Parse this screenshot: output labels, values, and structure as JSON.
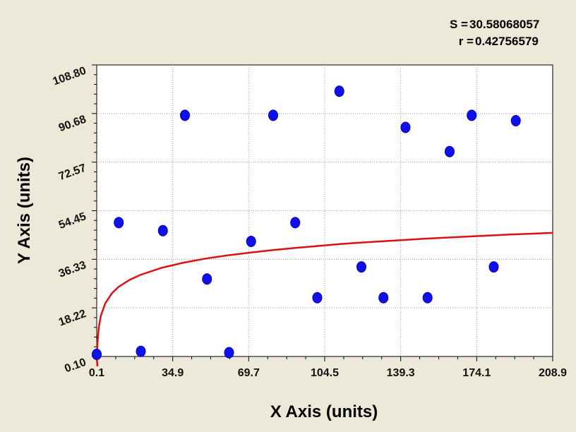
{
  "chart_data": {
    "type": "scatter",
    "title": "",
    "xlabel": "X Axis (units)",
    "ylabel": "Y Axis (units)",
    "xlim": [
      0.1,
      208.9
    ],
    "ylim": [
      0.1,
      108.8
    ],
    "x_ticks": [
      "0.1",
      "34.9",
      "69.7",
      "104.5",
      "139.3",
      "174.1",
      "208.9"
    ],
    "y_ticks": [
      "0.10",
      "18.22",
      "36.33",
      "54.45",
      "72.57",
      "90.68",
      "108.80"
    ],
    "grid": true,
    "stats": {
      "s_label": "S =",
      "s_value": "30.58068057",
      "r_label": "r =",
      "r_value": "0.42756579"
    },
    "series": [
      {
        "type": "scatter",
        "points": [
          [
            0.1,
            0.9
          ],
          [
            10.2,
            50.0
          ],
          [
            20.3,
            2.0
          ],
          [
            30.4,
            47.0
          ],
          [
            40.5,
            90.0
          ],
          [
            50.6,
            29.0
          ],
          [
            60.7,
            1.5
          ],
          [
            70.8,
            43.0
          ],
          [
            80.9,
            90.0
          ],
          [
            91.0,
            50.0
          ],
          [
            101.1,
            22.0
          ],
          [
            111.2,
            99.0
          ],
          [
            121.3,
            33.5
          ],
          [
            131.4,
            22.0
          ],
          [
            141.5,
            85.5
          ],
          [
            151.6,
            22.0
          ],
          [
            161.7,
            76.5
          ],
          [
            171.8,
            90.0
          ],
          [
            181.9,
            33.5
          ],
          [
            192.0,
            88.0
          ]
        ]
      },
      {
        "type": "line",
        "fit": "log",
        "points": [
          [
            0.1,
            0
          ],
          [
            0.4,
            4.5
          ],
          [
            1,
            10.7
          ],
          [
            2,
            15.3
          ],
          [
            4,
            19.9
          ],
          [
            7,
            23.6
          ],
          [
            10,
            26.0
          ],
          [
            15,
            28.6
          ],
          [
            20,
            30.5
          ],
          [
            30,
            33.2
          ],
          [
            40,
            35.1
          ],
          [
            50,
            36.6
          ],
          [
            60,
            37.8
          ],
          [
            70,
            38.8
          ],
          [
            80,
            39.7
          ],
          [
            90,
            40.5
          ],
          [
            100,
            41.2
          ],
          [
            110,
            41.9
          ],
          [
            120,
            42.5
          ],
          [
            130,
            43.0
          ],
          [
            140,
            43.5
          ],
          [
            150,
            44.0
          ],
          [
            160,
            44.4
          ],
          [
            170,
            44.8
          ],
          [
            180,
            45.2
          ],
          [
            190,
            45.6
          ],
          [
            200,
            45.9
          ],
          [
            208.9,
            46.2
          ]
        ]
      }
    ],
    "colors": {
      "points": "#1010ee",
      "fit_line": "#dd1111",
      "background": "#ece9d8",
      "plot_area": "#ffffff",
      "grid": "#999999"
    }
  }
}
